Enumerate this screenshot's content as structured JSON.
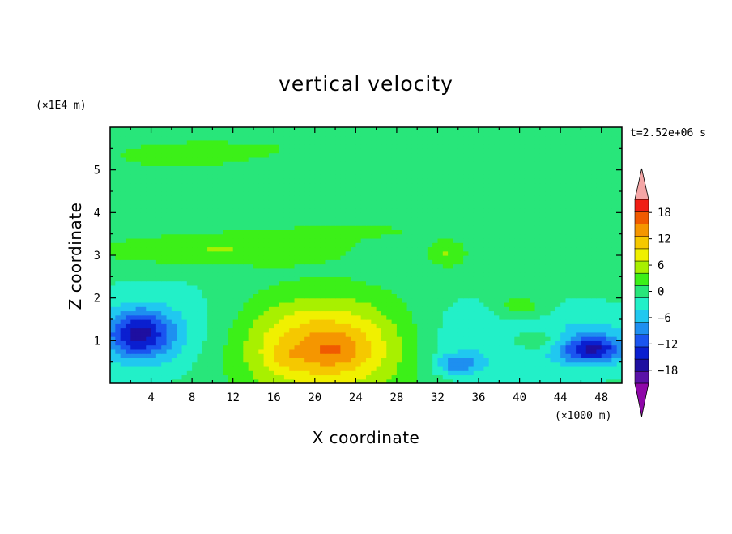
{
  "chart_data": {
    "type": "heatmap",
    "subtype": "filled-contour",
    "title": "vertical velocity",
    "xlabel": "X coordinate",
    "ylabel": "Z coordinate",
    "x_unit": "(×1000 m)",
    "y_unit": "(×1E4 m)",
    "time_label": "t=2.52e+06 s",
    "xlim": [
      0,
      50
    ],
    "ylim": [
      0,
      6
    ],
    "x_ticks": [
      4,
      8,
      12,
      16,
      20,
      24,
      28,
      32,
      36,
      40,
      44,
      48
    ],
    "y_ticks": [
      1,
      2,
      3,
      4,
      5
    ],
    "colorbar": {
      "levels": [
        -21,
        -18,
        -15,
        -12,
        -9,
        -6,
        -3,
        0,
        3,
        6,
        9,
        12,
        15,
        18,
        21
      ],
      "tick_values": [
        -18,
        -12,
        -6,
        0,
        6,
        12,
        18
      ],
      "tick_labels": [
        "−18",
        "−12",
        "−6",
        "0",
        "6",
        "12",
        "18"
      ],
      "colors": [
        "#5a12a8",
        "#1e0fa0",
        "#0a1fd0",
        "#1a55f0",
        "#1e8ff0",
        "#20c8f0",
        "#22f0c8",
        "#28e67a",
        "#3cf018",
        "#a8f000",
        "#f0f000",
        "#f5c800",
        "#f59600",
        "#f05a00",
        "#f01e14"
      ],
      "under_color": "#8e08a8",
      "over_color": "#f4a6a6",
      "extend": "both"
    },
    "background_value": 1,
    "features": [
      {
        "name": "upper-band",
        "x": 30,
        "z": 5.6,
        "rx": 26,
        "rz": 0.55,
        "value": 2
      },
      {
        "name": "upper-band-left",
        "x": 6,
        "z": 5.3,
        "rx": 10,
        "rz": 0.45,
        "value": 2
      },
      {
        "name": "mid-left-ridge",
        "x": 10,
        "z": 3.1,
        "rx": 12,
        "rz": 0.35,
        "value": 5
      },
      {
        "name": "mid-band",
        "x": 25,
        "z": 3.6,
        "rx": 18,
        "rz": 0.35,
        "value": 2
      },
      {
        "name": "patch-34-3",
        "x": 33,
        "z": 3.0,
        "rx": 1.8,
        "rz": 0.28,
        "value": 5
      },
      {
        "name": "patch-40-1.8",
        "x": 40,
        "z": 1.8,
        "rx": 2.5,
        "rz": 0.3,
        "value": 5
      },
      {
        "name": "patch-42-1",
        "x": 42,
        "z": 1.0,
        "rx": 2.8,
        "rz": 0.25,
        "value": 5
      },
      {
        "name": "low-cool-left",
        "x": 5,
        "z": 1.2,
        "rx": 8,
        "rz": 1.1,
        "value": -4
      },
      {
        "name": "left-core",
        "x": 2.8,
        "z": 1.15,
        "rx": 3.2,
        "rz": 0.55,
        "value": -14
      },
      {
        "name": "mid-cool",
        "x": 35,
        "z": 1.0,
        "rx": 8,
        "rz": 1.0,
        "value": -4
      },
      {
        "name": "mid-core",
        "x": 34,
        "z": 0.45,
        "rx": 2.2,
        "rz": 0.25,
        "value": -8
      },
      {
        "name": "right-cool",
        "x": 47,
        "z": 1.0,
        "rx": 5,
        "rz": 0.75,
        "value": -5
      },
      {
        "name": "right-core",
        "x": 47,
        "z": 0.8,
        "rx": 3.2,
        "rz": 0.3,
        "value": -12
      },
      {
        "name": "updraft",
        "x": 21,
        "z": 0.85,
        "rx": 8.5,
        "rz": 1.15,
        "value": 15
      },
      {
        "name": "updraft-core",
        "x": 22,
        "z": 0.8,
        "rx": 3,
        "rz": 0.35,
        "value": 3
      },
      {
        "name": "updraft-core-left",
        "x": 17,
        "z": 0.6,
        "rx": 1.4,
        "rz": 0.25,
        "value": 2
      }
    ]
  }
}
